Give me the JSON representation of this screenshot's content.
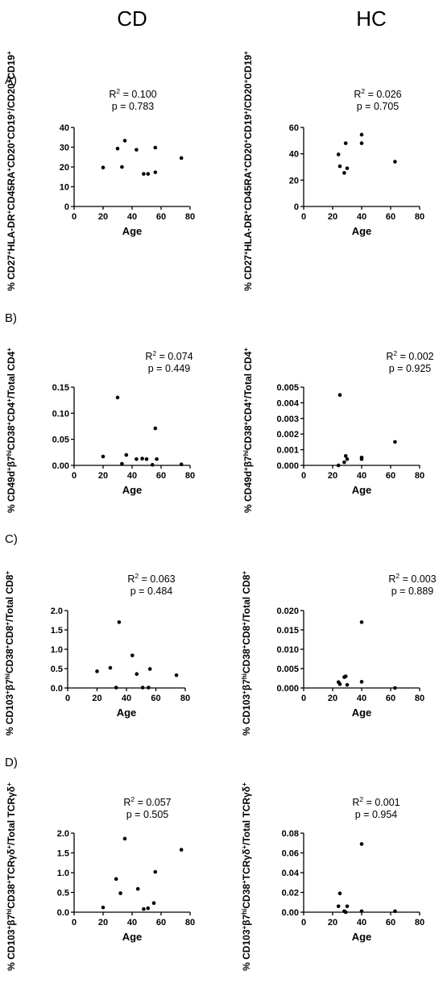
{
  "column_headers": [
    "CD",
    "HC"
  ],
  "chart_data": [
    {
      "type": "scatter",
      "row_label": "A)",
      "column": "CD",
      "xlabel": "Age",
      "ylabel_parts": [
        [
          "% CD27",
          "+"
        ],
        [
          "HLA-DR",
          "+"
        ],
        [
          "CD45RA",
          "+"
        ],
        [
          "CD20",
          "+"
        ],
        [
          "CD19",
          "+"
        ],
        [
          "/CD20",
          "+"
        ],
        [
          "CD19",
          "+"
        ]
      ],
      "stat_r2_base": "R",
      "stat_r2_exp": "2",
      "stat_r2_rest": " = 0.100",
      "stat_p": "p = 0.783",
      "xlim": [
        0,
        80
      ],
      "xticks": [
        "0",
        "20",
        "40",
        "60",
        "80"
      ],
      "ylim": [
        0,
        40
      ],
      "yticks": [
        "0",
        "10",
        "20",
        "30",
        "40"
      ],
      "x": [
        20,
        30,
        33,
        35,
        43,
        48,
        51,
        56,
        56,
        74
      ],
      "y": [
        19.7,
        29.3,
        20.0,
        33.3,
        28.7,
        16.5,
        16.5,
        17.3,
        29.8,
        24.5
      ]
    },
    {
      "type": "scatter",
      "row_label": "",
      "column": "HC",
      "xlabel": "Age",
      "ylabel_parts": [
        [
          "% CD27",
          "+"
        ],
        [
          "HLA-DR",
          "+"
        ],
        [
          "CD45RA",
          "+"
        ],
        [
          "CD20",
          "+"
        ],
        [
          "CD19",
          "+"
        ],
        [
          "/CD20",
          "+"
        ],
        [
          "CD19",
          "+"
        ]
      ],
      "stat_r2_base": "R",
      "stat_r2_exp": "2",
      "stat_r2_rest": " = 0.026",
      "stat_p": "p = 0.705",
      "xlim": [
        0,
        80
      ],
      "xticks": [
        "0",
        "20",
        "40",
        "60",
        "80"
      ],
      "ylim": [
        0,
        60
      ],
      "yticks": [
        "0",
        "20",
        "40",
        "60"
      ],
      "x": [
        24,
        25,
        28,
        29,
        30,
        40,
        40,
        63
      ],
      "y": [
        39.5,
        30.5,
        25.5,
        48.0,
        29.0,
        54.5,
        48.0,
        34.0
      ]
    },
    {
      "type": "scatter",
      "row_label": "B)",
      "column": "CD",
      "xlabel": "Age",
      "ylabel_parts": [
        [
          "% CD49d",
          "+"
        ],
        [
          "β7",
          "hi"
        ],
        [
          "CD38",
          "+"
        ],
        [
          "CD4",
          "+"
        ],
        [
          "/Total CD4",
          "+"
        ]
      ],
      "stat_r2_base": "R",
      "stat_r2_exp": "2",
      "stat_r2_rest": " = 0.074",
      "stat_p": "p = 0.449",
      "xlim": [
        0,
        80
      ],
      "xticks": [
        "0",
        "20",
        "40",
        "60",
        "80"
      ],
      "ylim": [
        0,
        0.15
      ],
      "yticks": [
        "0.00",
        "0.05",
        "0.10",
        "0.15"
      ],
      "x": [
        20,
        30,
        33,
        36,
        43,
        47,
        50,
        54,
        56,
        57,
        74
      ],
      "y": [
        0.017,
        0.13,
        0.003,
        0.02,
        0.012,
        0.013,
        0.012,
        0.001,
        0.071,
        0.012,
        0.002
      ]
    },
    {
      "type": "scatter",
      "row_label": "",
      "column": "HC",
      "xlabel": "Age",
      "ylabel_parts": [
        [
          "% CD49d",
          "+"
        ],
        [
          "β7",
          "hi"
        ],
        [
          "CD38",
          "+"
        ],
        [
          "CD4",
          "+"
        ],
        [
          "/Total CD4",
          "+"
        ]
      ],
      "stat_r2_base": "R",
      "stat_r2_exp": "2",
      "stat_r2_rest": " = 0.002",
      "stat_p": "p = 0.925",
      "xlim": [
        0,
        80
      ],
      "xticks": [
        "0",
        "20",
        "40",
        "60",
        "80"
      ],
      "ylim": [
        0,
        0.005
      ],
      "yticks": [
        "0.000",
        "0.001",
        "0.002",
        "0.003",
        "0.004",
        "0.005"
      ],
      "x": [
        24,
        25,
        28,
        29,
        30,
        40,
        40,
        63
      ],
      "y": [
        0.0,
        0.0045,
        0.0002,
        0.0006,
        0.0004,
        0.0004,
        0.0005,
        0.0015
      ]
    },
    {
      "type": "scatter",
      "row_label": "C)",
      "column": "CD",
      "xlabel": "Age",
      "ylabel_parts": [
        [
          "% CD103",
          "+"
        ],
        [
          "β7",
          "hi"
        ],
        [
          "CD38",
          "+"
        ],
        [
          "CD8",
          "+"
        ],
        [
          "/Total CD8",
          "+"
        ]
      ],
      "stat_r2_base": "R",
      "stat_r2_exp": "2",
      "stat_r2_rest": " = 0.063",
      "stat_p": "p = 0.484",
      "xlim": [
        0,
        80
      ],
      "xticks": [
        "0",
        "20",
        "40",
        "60",
        "80"
      ],
      "ylim": [
        0,
        2.0
      ],
      "yticks": [
        "0.0",
        "0.5",
        "1.0",
        "1.5",
        "2.0"
      ],
      "x": [
        20,
        29,
        33,
        35,
        44,
        47,
        51,
        55,
        56,
        74
      ],
      "y": [
        0.43,
        0.52,
        0.01,
        1.7,
        0.84,
        0.36,
        0.01,
        0.01,
        0.49,
        0.33
      ]
    },
    {
      "type": "scatter",
      "row_label": "",
      "column": "HC",
      "xlabel": "Age",
      "ylabel_parts": [
        [
          "% CD103",
          "+"
        ],
        [
          "β7",
          "hi"
        ],
        [
          "CD38",
          "+"
        ],
        [
          "CD8",
          "+"
        ],
        [
          "/Total CD8",
          "+"
        ]
      ],
      "stat_r2_base": "R",
      "stat_r2_exp": "2",
      "stat_r2_rest": " = 0.003",
      "stat_p": "p = 0.889",
      "xlim": [
        0,
        80
      ],
      "xticks": [
        "0",
        "20",
        "40",
        "60",
        "80"
      ],
      "ylim": [
        0,
        0.02
      ],
      "yticks": [
        "0.000",
        "0.005",
        "0.010",
        "0.015",
        "0.020"
      ],
      "x": [
        24,
        25,
        28,
        29,
        30,
        40,
        40,
        63
      ],
      "y": [
        0.0015,
        0.001,
        0.0028,
        0.003,
        0.0008,
        0.017,
        0.0016,
        0.0
      ]
    },
    {
      "type": "scatter",
      "row_label": "D)",
      "column": "CD",
      "xlabel": "Age",
      "ylabel_parts": [
        [
          "% CD103",
          "+"
        ],
        [
          "β7",
          "hi"
        ],
        [
          "CD38",
          "+"
        ],
        [
          "TCRγδ",
          "+"
        ],
        [
          "/Total TCRγδ",
          "+"
        ]
      ],
      "stat_r2_base": "R",
      "stat_r2_exp": "2",
      "stat_r2_rest": " = 0.057",
      "stat_p": "p = 0.505",
      "xlim": [
        0,
        80
      ],
      "xticks": [
        "0",
        "20",
        "40",
        "60",
        "80"
      ],
      "ylim": [
        0,
        2.0
      ],
      "yticks": [
        "0.0",
        "0.5",
        "1.0",
        "1.5",
        "2.0"
      ],
      "x": [
        20,
        29,
        32,
        35,
        44,
        48,
        51,
        55,
        56,
        74
      ],
      "y": [
        0.12,
        0.84,
        0.48,
        1.86,
        0.59,
        0.08,
        0.1,
        0.23,
        1.02,
        1.58
      ]
    },
    {
      "type": "scatter",
      "row_label": "",
      "column": "HC",
      "xlabel": "Age",
      "ylabel_parts": [
        [
          "% CD103",
          "+"
        ],
        [
          "β7",
          "hi"
        ],
        [
          "CD38",
          "+"
        ],
        [
          "TCRγδ",
          "+"
        ],
        [
          "/Total TCRγδ",
          "+"
        ]
      ],
      "stat_r2_base": "R",
      "stat_r2_exp": "2",
      "stat_r2_rest": " = 0.001",
      "stat_p": "p = 0.954",
      "xlim": [
        0,
        80
      ],
      "xticks": [
        "0",
        "20",
        "40",
        "60",
        "80"
      ],
      "ylim": [
        0,
        0.08
      ],
      "yticks": [
        "0.00",
        "0.02",
        "0.04",
        "0.06",
        "0.08"
      ],
      "x": [
        24,
        25,
        28,
        29,
        30,
        40,
        40,
        63
      ],
      "y": [
        0.006,
        0.019,
        0.001,
        0.0,
        0.006,
        0.069,
        0.001,
        0.001
      ]
    }
  ]
}
